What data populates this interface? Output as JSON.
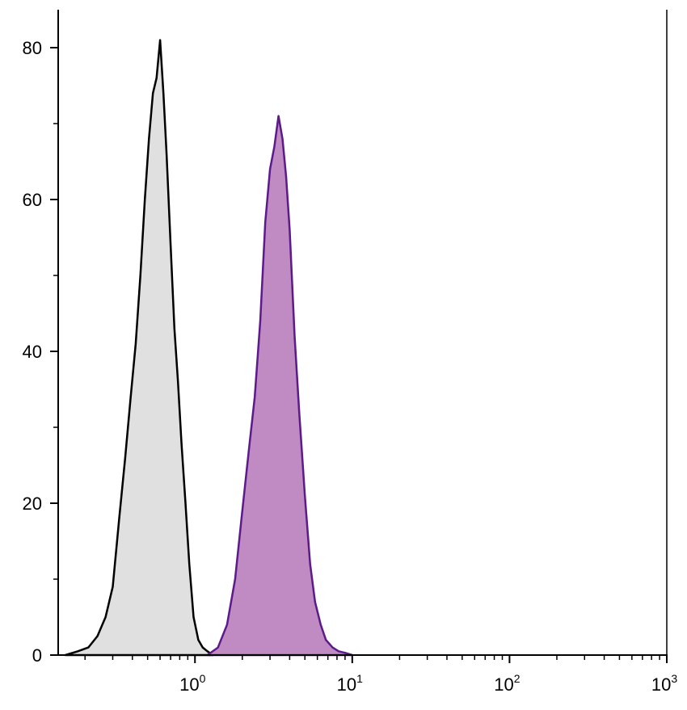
{
  "chart_data": {
    "type": "area",
    "title": "",
    "xlabel": "",
    "ylabel": "",
    "xscale": "log",
    "xlim": [
      0.135,
      1000
    ],
    "ylim": [
      0,
      85
    ],
    "grid": false,
    "y_ticks": [
      {
        "value": 0,
        "label": "0"
      },
      {
        "value": 20,
        "label": "20"
      },
      {
        "value": 40,
        "label": "40"
      },
      {
        "value": 60,
        "label": "60"
      },
      {
        "value": 80,
        "label": "80"
      }
    ],
    "x_ticks": [
      {
        "value": 1,
        "base": "10",
        "exp": "0"
      },
      {
        "value": 10,
        "base": "10",
        "exp": "1"
      },
      {
        "value": 100,
        "base": "10",
        "exp": "2"
      },
      {
        "value": 1000,
        "base": "10",
        "exp": "3"
      }
    ],
    "series": [
      {
        "fill": "#e0e0e0",
        "stroke": "#000000",
        "x": [
          0.15,
          0.18,
          0.21,
          0.24,
          0.27,
          0.3,
          0.33,
          0.36,
          0.39,
          0.42,
          0.45,
          0.48,
          0.51,
          0.54,
          0.57,
          0.6,
          0.63,
          0.66,
          0.7,
          0.74,
          0.78,
          0.82,
          0.87,
          0.92,
          0.98,
          1.05,
          1.12,
          1.2,
          1.3
        ],
        "y": [
          0,
          0.5,
          1,
          2.5,
          5,
          9,
          18,
          26,
          34,
          41,
          50,
          60,
          68,
          74,
          76,
          81,
          74,
          66,
          54,
          43,
          36,
          28,
          20,
          12,
          5,
          2,
          1,
          0.5,
          0
        ]
      },
      {
        "fill": "#bf8bc2",
        "stroke": "#5c1a8a",
        "x": [
          1.2,
          1.4,
          1.6,
          1.8,
          2.0,
          2.2,
          2.4,
          2.6,
          2.8,
          3.0,
          3.2,
          3.4,
          3.6,
          3.8,
          4.0,
          4.3,
          4.6,
          5.0,
          5.4,
          5.8,
          6.3,
          6.8,
          7.5,
          8.2,
          9.0,
          10.0
        ],
        "y": [
          0,
          1,
          4,
          10,
          19,
          27,
          34,
          44,
          57,
          64,
          67,
          71,
          68,
          63,
          56,
          42,
          32,
          21,
          12,
          7,
          4,
          2,
          1,
          0.5,
          0.3,
          0
        ]
      }
    ]
  }
}
